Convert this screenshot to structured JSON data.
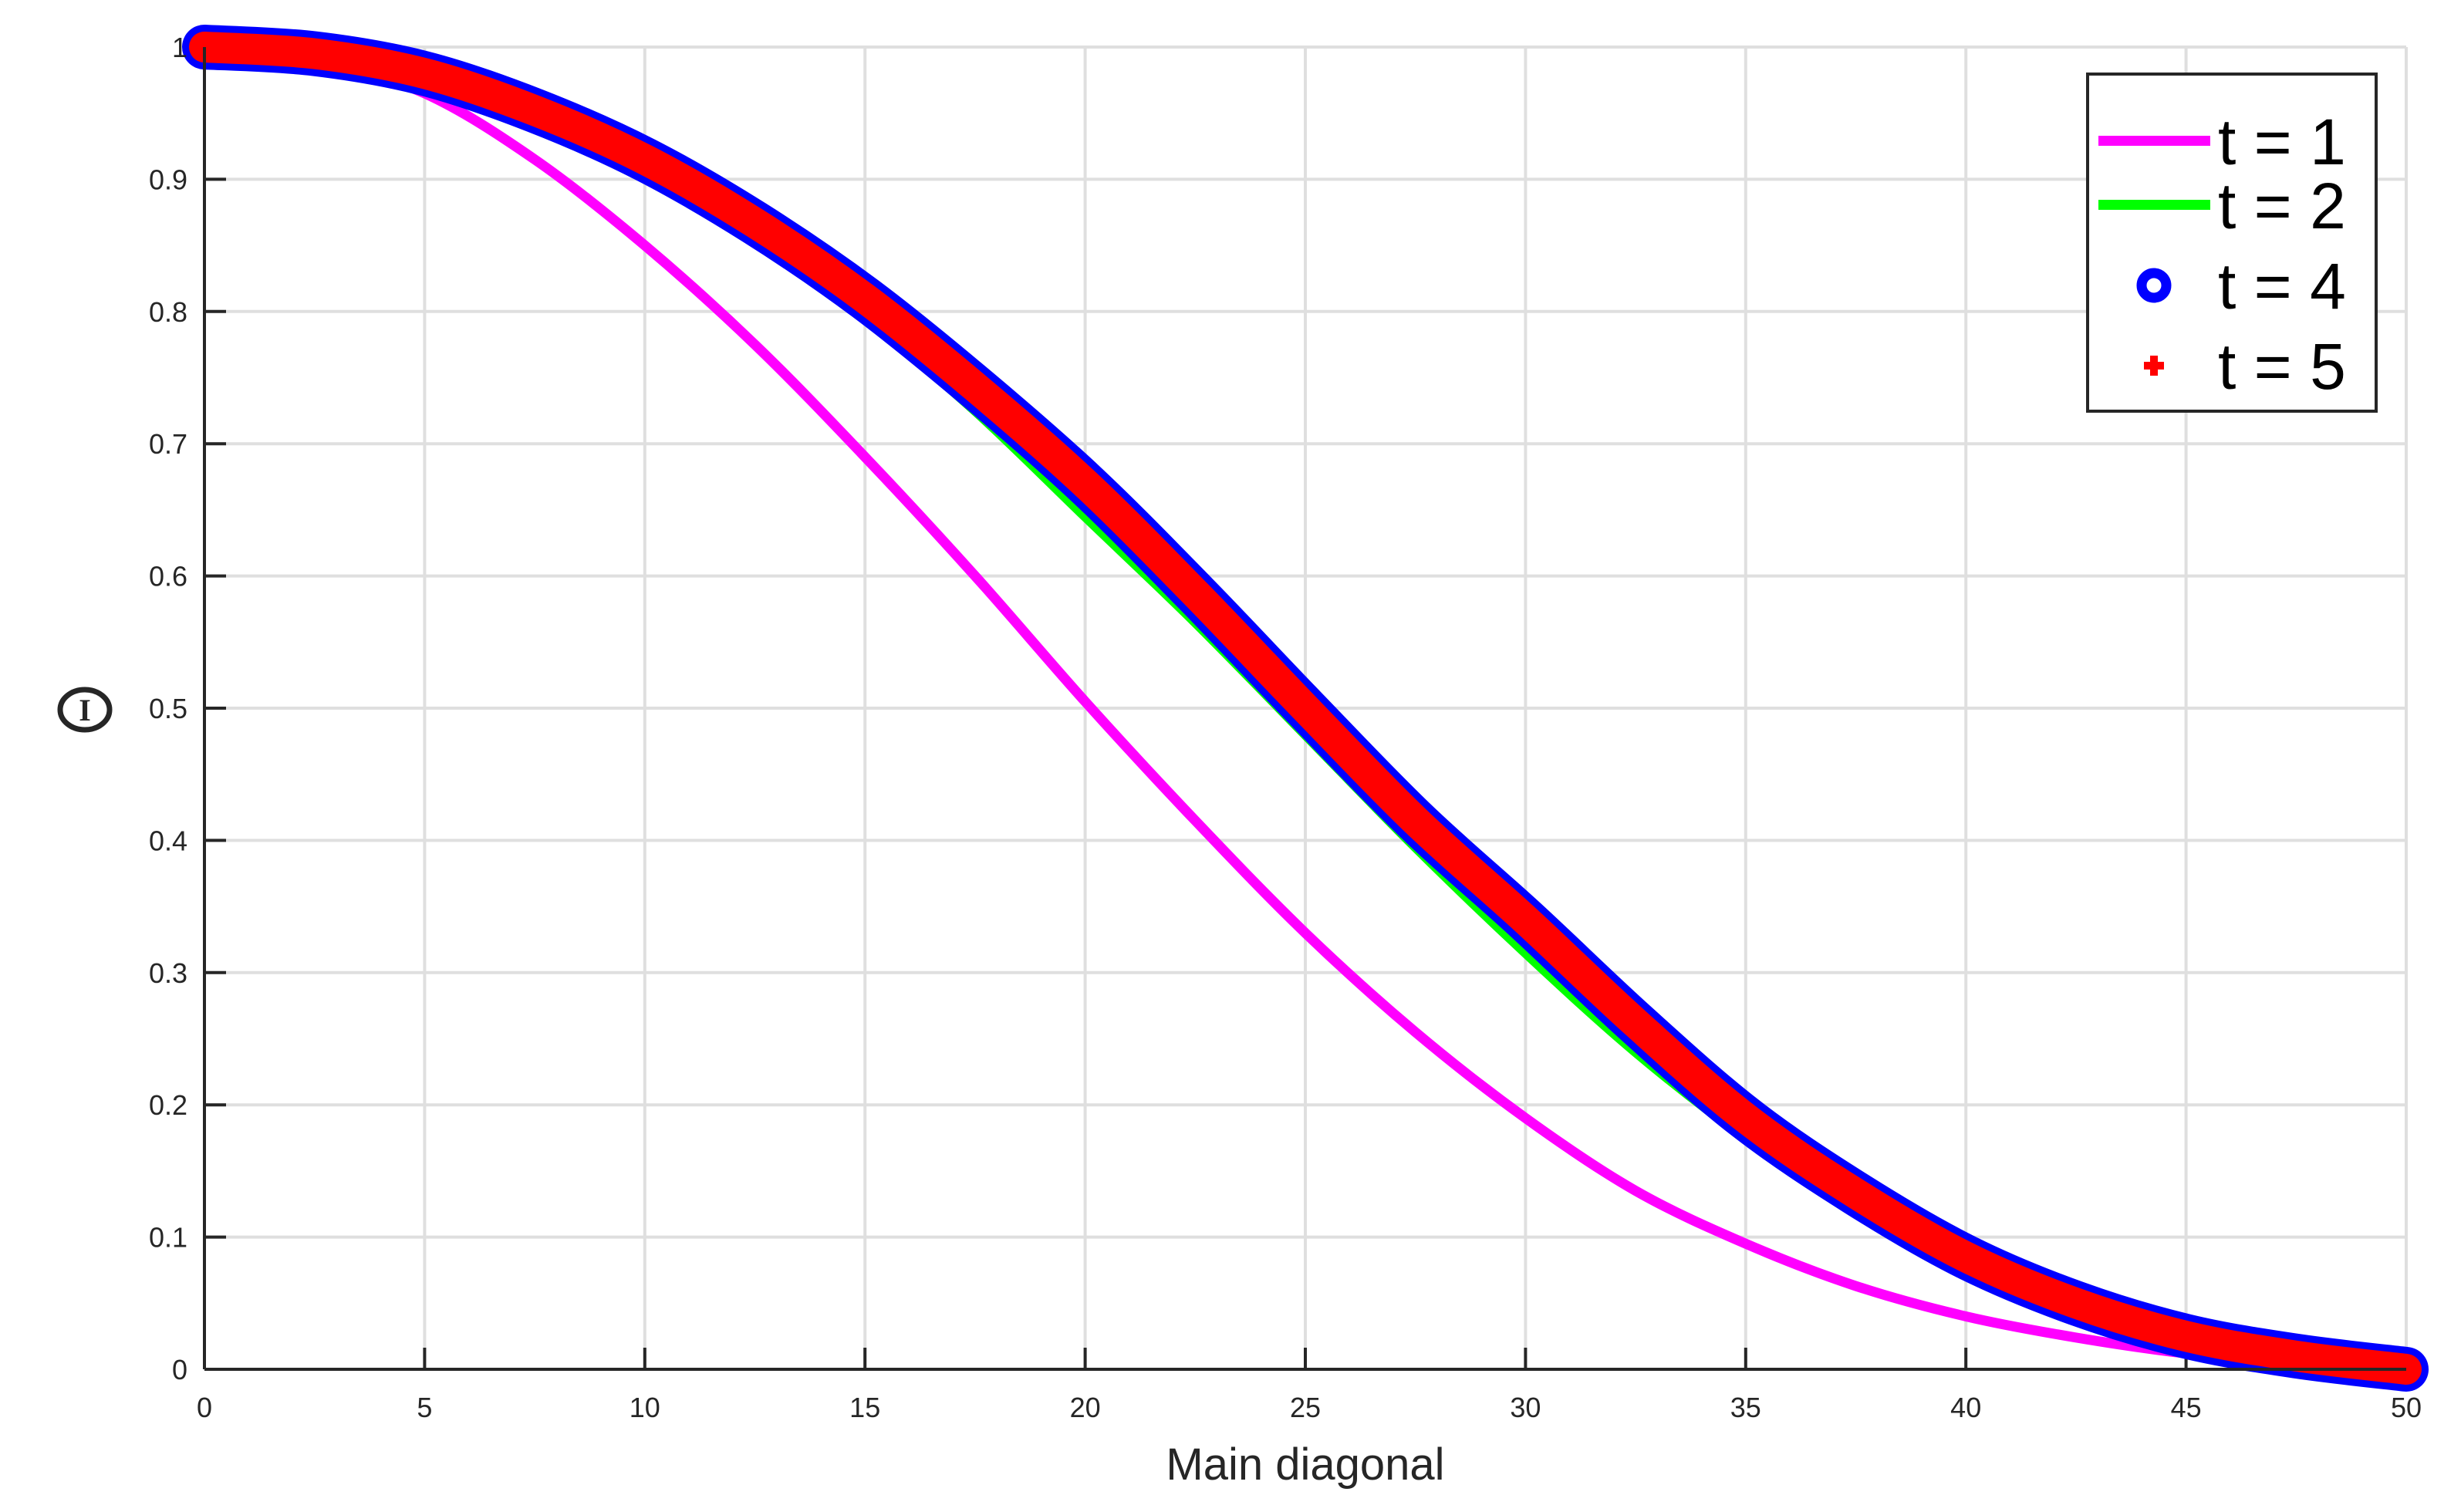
{
  "chart_data": {
    "type": "line",
    "title": "",
    "xlabel": "Main diagonal",
    "ylabel": "Θ",
    "xlim": [
      0,
      50
    ],
    "ylim": [
      0,
      1
    ],
    "grid": true,
    "legend_position": "northeast",
    "x_ticks": [
      "0",
      "5",
      "10",
      "15",
      "20",
      "25",
      "30",
      "35",
      "40",
      "45",
      "50"
    ],
    "y_ticks": [
      "0",
      "0.1",
      "0.2",
      "0.3",
      "0.4",
      "0.5",
      "0.6",
      "0.7",
      "0.8",
      "0.9",
      "1"
    ],
    "x": [
      0,
      2.5,
      5,
      7.5,
      10,
      12.5,
      15,
      17.5,
      20,
      22.5,
      25,
      27.5,
      30,
      32.5,
      35,
      37.5,
      40,
      42.5,
      45,
      47.5,
      50
    ],
    "series": [
      {
        "name": "t = 1",
        "color": "#ff00ff",
        "style": "line",
        "values": [
          1.0,
          0.99,
          0.965,
          0.915,
          0.85,
          0.775,
          0.69,
          0.6,
          0.505,
          0.415,
          0.33,
          0.255,
          0.19,
          0.135,
          0.095,
          0.063,
          0.04,
          0.024,
          0.012,
          0.005,
          0.0
        ]
      },
      {
        "name": "t = 2",
        "color": "#00ff00",
        "style": "line",
        "values": [
          1.0,
          0.995,
          0.975,
          0.945,
          0.905,
          0.855,
          0.795,
          0.725,
          0.645,
          0.565,
          0.48,
          0.395,
          0.315,
          0.24,
          0.175,
          0.12,
          0.08,
          0.047,
          0.024,
          0.009,
          0.0
        ]
      },
      {
        "name": "t = 4",
        "color": "#0000ff",
        "style": "circle-marker",
        "values": [
          1.0,
          0.995,
          0.98,
          0.952,
          0.915,
          0.867,
          0.81,
          0.743,
          0.67,
          0.587,
          0.5,
          0.415,
          0.34,
          0.262,
          0.19,
          0.133,
          0.085,
          0.05,
          0.025,
          0.01,
          0.0
        ]
      },
      {
        "name": "t = 5",
        "color": "#ff0000",
        "style": "plus-marker",
        "values": [
          1.0,
          0.995,
          0.98,
          0.952,
          0.915,
          0.867,
          0.81,
          0.743,
          0.67,
          0.587,
          0.5,
          0.415,
          0.34,
          0.262,
          0.19,
          0.133,
          0.085,
          0.05,
          0.025,
          0.01,
          0.0
        ]
      }
    ]
  },
  "axes": {
    "xlabel": "Main diagonal",
    "ylabel": "Θ"
  },
  "legend": {
    "items": [
      {
        "label": "t = 1",
        "color": "#ff00ff"
      },
      {
        "label": "t = 2",
        "color": "#00ff00"
      },
      {
        "label": "t = 4",
        "color": "#0000ff"
      },
      {
        "label": "t = 5",
        "color": "#ff0000"
      }
    ]
  }
}
